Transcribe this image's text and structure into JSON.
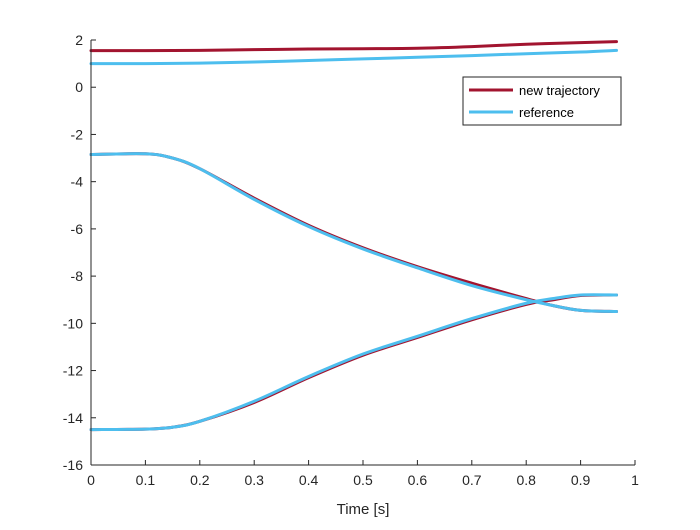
{
  "chart_data": {
    "type": "line",
    "title": "",
    "xlabel": "Time [s]",
    "ylabel": "",
    "xlim": [
      0,
      1
    ],
    "ylim": [
      -16,
      2
    ],
    "xticks": [
      0,
      0.1,
      0.2,
      0.3,
      0.4,
      0.5,
      0.6,
      0.7,
      0.8,
      0.9,
      1
    ],
    "xtick_labels": [
      "0",
      "0.1",
      "0.2",
      "0.3",
      "0.4",
      "0.5",
      "0.6",
      "0.7",
      "0.8",
      "0.9",
      "1"
    ],
    "yticks": [
      -16,
      -14,
      -12,
      -10,
      -8,
      -6,
      -4,
      -2,
      0,
      2
    ],
    "ytick_labels": [
      "-16",
      "-14",
      "-12",
      "-10",
      "-8",
      "-6",
      "-4",
      "-2",
      "0",
      "2"
    ],
    "grid": false,
    "legend_position": "top-right",
    "series": [
      {
        "name": "new trajectory",
        "color": "#A2142F",
        "lines": [
          {
            "x": [
              0,
              0.1,
              0.2,
              0.3,
              0.4,
              0.5,
              0.6,
              0.7,
              0.8,
              0.9,
              0.966
            ],
            "y": [
              1.55,
              1.55,
              1.56,
              1.59,
              1.62,
              1.63,
              1.65,
              1.72,
              1.82,
              1.89,
              1.93
            ]
          },
          {
            "x": [
              0,
              0.1,
              0.15,
              0.2,
              0.3,
              0.4,
              0.5,
              0.6,
              0.7,
              0.8,
              0.85,
              0.9,
              0.966
            ],
            "y": [
              -2.85,
              -2.82,
              -3.0,
              -3.45,
              -4.7,
              -5.85,
              -6.8,
              -7.6,
              -8.3,
              -8.95,
              -9.25,
              -9.45,
              -9.5
            ]
          },
          {
            "x": [
              0,
              0.1,
              0.15,
              0.2,
              0.3,
              0.4,
              0.5,
              0.6,
              0.7,
              0.8,
              0.85,
              0.9,
              0.966
            ],
            "y": [
              -14.5,
              -14.48,
              -14.4,
              -14.15,
              -13.35,
              -12.3,
              -11.35,
              -10.6,
              -9.85,
              -9.2,
              -9.0,
              -8.82,
              -8.8
            ]
          }
        ]
      },
      {
        "name": "reference",
        "color": "#4DBEEE",
        "lines": [
          {
            "x": [
              0,
              0.1,
              0.2,
              0.3,
              0.4,
              0.5,
              0.6,
              0.7,
              0.8,
              0.9,
              0.966
            ],
            "y": [
              1.0,
              1.0,
              1.02,
              1.07,
              1.13,
              1.2,
              1.27,
              1.34,
              1.42,
              1.49,
              1.56
            ]
          },
          {
            "x": [
              0,
              0.1,
              0.15,
              0.2,
              0.3,
              0.4,
              0.5,
              0.6,
              0.7,
              0.8,
              0.85,
              0.9,
              0.966
            ],
            "y": [
              -2.85,
              -2.82,
              -3.0,
              -3.45,
              -4.75,
              -5.9,
              -6.85,
              -7.65,
              -8.4,
              -9.0,
              -9.25,
              -9.45,
              -9.5
            ]
          },
          {
            "x": [
              0,
              0.1,
              0.15,
              0.2,
              0.3,
              0.4,
              0.5,
              0.6,
              0.7,
              0.8,
              0.85,
              0.9,
              0.966
            ],
            "y": [
              -14.5,
              -14.48,
              -14.4,
              -14.15,
              -13.3,
              -12.25,
              -11.3,
              -10.55,
              -9.8,
              -9.15,
              -8.95,
              -8.8,
              -8.8
            ]
          }
        ]
      }
    ]
  }
}
